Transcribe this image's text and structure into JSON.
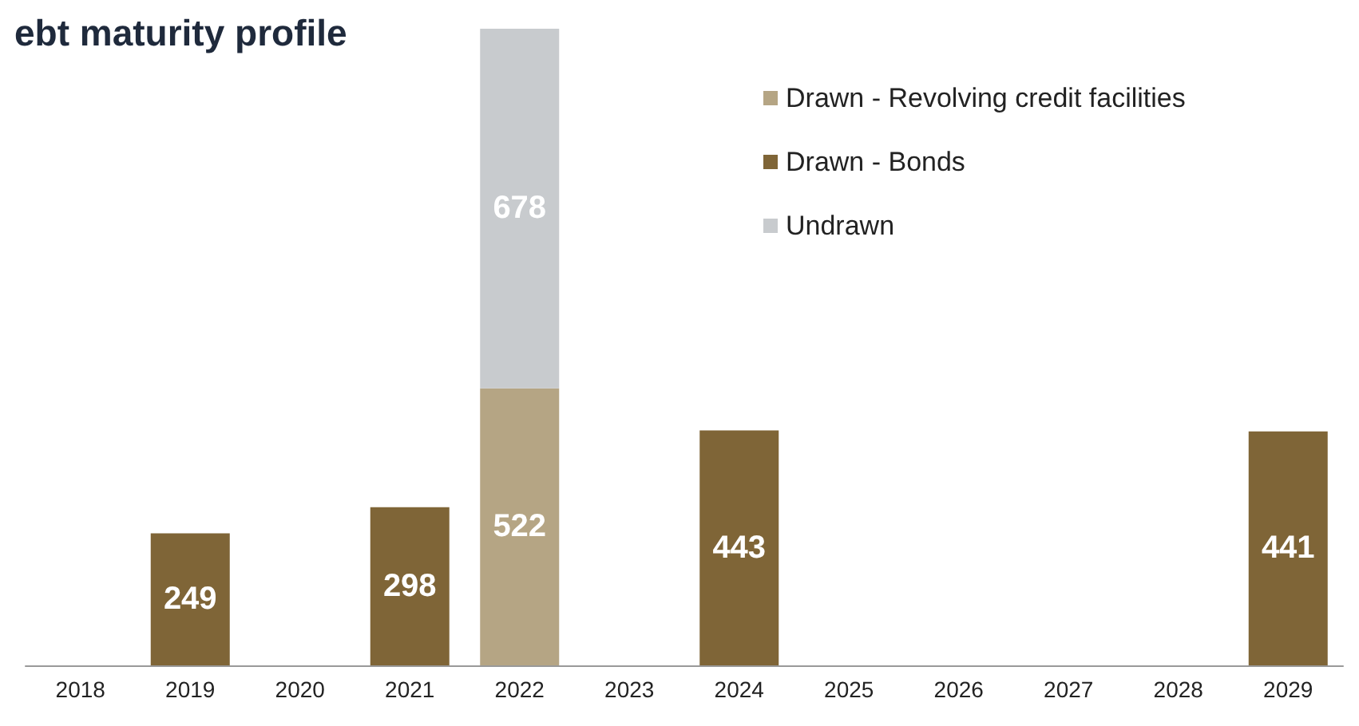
{
  "chart_data": {
    "type": "bar",
    "title": "ebt maturity profile",
    "categories": [
      "2018",
      "2019",
      "2020",
      "2021",
      "2022",
      "2023",
      "2024",
      "2025",
      "2026",
      "2027",
      "2028",
      "2029"
    ],
    "stacked": true,
    "data_labels": true,
    "legend": "top right",
    "series": [
      {
        "name": "Drawn - Revolving credit facilities",
        "color": "#b5a584",
        "values": [
          null,
          null,
          null,
          null,
          522,
          null,
          null,
          null,
          null,
          null,
          null,
          null
        ]
      },
      {
        "name": "Drawn - Bonds",
        "color": "#7f6537",
        "values": [
          null,
          249,
          null,
          298,
          null,
          null,
          443,
          null,
          null,
          null,
          null,
          441
        ]
      },
      {
        "name": "Undrawn",
        "color": "#c8cbce",
        "values": [
          null,
          null,
          null,
          null,
          678,
          null,
          null,
          null,
          null,
          null,
          null,
          null
        ]
      }
    ]
  }
}
